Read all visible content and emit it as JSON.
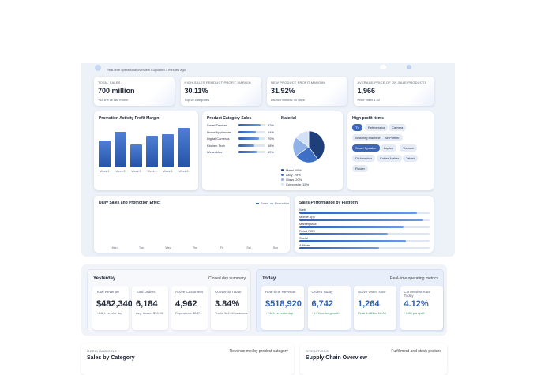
{
  "header": {
    "subtitle": "Real-time operational overview • Updated 3 minutes ago"
  },
  "kpis": [
    {
      "label": "TOTAL SALES",
      "value": "700 million",
      "note": "+18.6% vs last month"
    },
    {
      "label": "HIGH-SALES PRODUCT PROFIT MARGIN",
      "value": "30.11%",
      "note": "Top 10 categories"
    },
    {
      "label": "NEW PRODUCT PROFIT MARGIN",
      "value": "31.92%",
      "note": "Launch window 30 days"
    },
    {
      "label": "AVERAGE PRICE OF ON-SALE PRODUCTS",
      "value": "1,966",
      "note": "Price index 1.02"
    }
  ],
  "promotion": {
    "title": "Promotion Activity Profit Margin",
    "categories": [
      "Week 1",
      "Week 2",
      "Week 3",
      "Week 4",
      "Week 5",
      "Week 6"
    ],
    "values": [
      34,
      45,
      29,
      40,
      42,
      50
    ]
  },
  "category_sales": {
    "title": "Product Category Sales",
    "items": [
      {
        "name": "Smart Devices",
        "value": 82,
        "label": "82%"
      },
      {
        "name": "Home Appliances",
        "value": 64,
        "label": "64%"
      },
      {
        "name": "Digital Cameras",
        "value": 75,
        "label": "75%"
      },
      {
        "name": "Kitchen Tech",
        "value": 58,
        "label": "58%"
      },
      {
        "name": "Wearables",
        "value": 69,
        "label": "69%"
      }
    ]
  },
  "material": {
    "title": "Material",
    "items": [
      {
        "name": "Metal",
        "value": 40,
        "label": "40%",
        "color": "#1f3f7a"
      },
      {
        "name": "Alloy",
        "value": 25,
        "label": "25%",
        "color": "#3d6fc4"
      },
      {
        "name": "Glass",
        "value": 20,
        "label": "20%",
        "color": "#8fb1e6"
      },
      {
        "name": "Composite",
        "value": 15,
        "label": "15%",
        "color": "#d5e2f6"
      }
    ]
  },
  "high_profit": {
    "title": "High-profit Items",
    "tags": [
      "TV",
      "Refrigerator",
      "Camera",
      "Washing Machine",
      "Air Purifier",
      "Smart Speaker",
      "Laptop",
      "Vacuum",
      "Dishwasher",
      "Coffee Maker",
      "Tablet",
      "Router"
    ],
    "selected": [
      0,
      5
    ]
  },
  "daily": {
    "title": "Daily Sales and Promotion Effect",
    "legend": [
      "Sales",
      "Promotion"
    ],
    "categories": [
      "Mon",
      "Tue",
      "Wed",
      "Thu",
      "Fri",
      "Sat",
      "Sun"
    ]
  },
  "platform": {
    "title": "Sales Performance by Platform",
    "categories": [
      "Web",
      "Mobile App",
      "Marketplace",
      "Retail POS",
      "Social",
      "Affiliate"
    ],
    "values": [
      90,
      95,
      80,
      68,
      82,
      61
    ]
  },
  "yesterday": {
    "title": "Yesterday",
    "subtitle": "Closed day summary",
    "cards": [
      {
        "label": "Total Revenue",
        "value": "$482,340",
        "note": "+4.8% vs prior day"
      },
      {
        "label": "Total Orders",
        "value": "6,184",
        "note": "Avg. basket $78.00"
      },
      {
        "label": "Active Customers",
        "value": "4,962",
        "note": "Repeat rate 38.2%"
      },
      {
        "label": "Conversion Rate",
        "value": "3.84%",
        "note": "Traffic 161.1K sessions"
      }
    ]
  },
  "today": {
    "title": "Today",
    "subtitle": "Real-time operating metrics",
    "cards": [
      {
        "label": "Real-time Revenue",
        "value": "$518,920",
        "note": "+7.6% vs yesterday"
      },
      {
        "label": "Orders Today",
        "value": "6,742",
        "note": "+9.0% order growth"
      },
      {
        "label": "Active Users Now",
        "value": "1,264",
        "note": "Peak 1,481 at 16:00"
      },
      {
        "label": "Conversion Rate Today",
        "value": "4.12%",
        "note": "+0.28 pts uplift"
      }
    ]
  },
  "bottom": [
    {
      "eyebrow": "MERCHANDISING",
      "title": "Sales by Category",
      "subtitle": "Revenue mix by product category"
    },
    {
      "eyebrow": "OPERATIONS",
      "title": "Supply Chain Overview",
      "subtitle": "Fulfillment and stock posture"
    }
  ]
}
